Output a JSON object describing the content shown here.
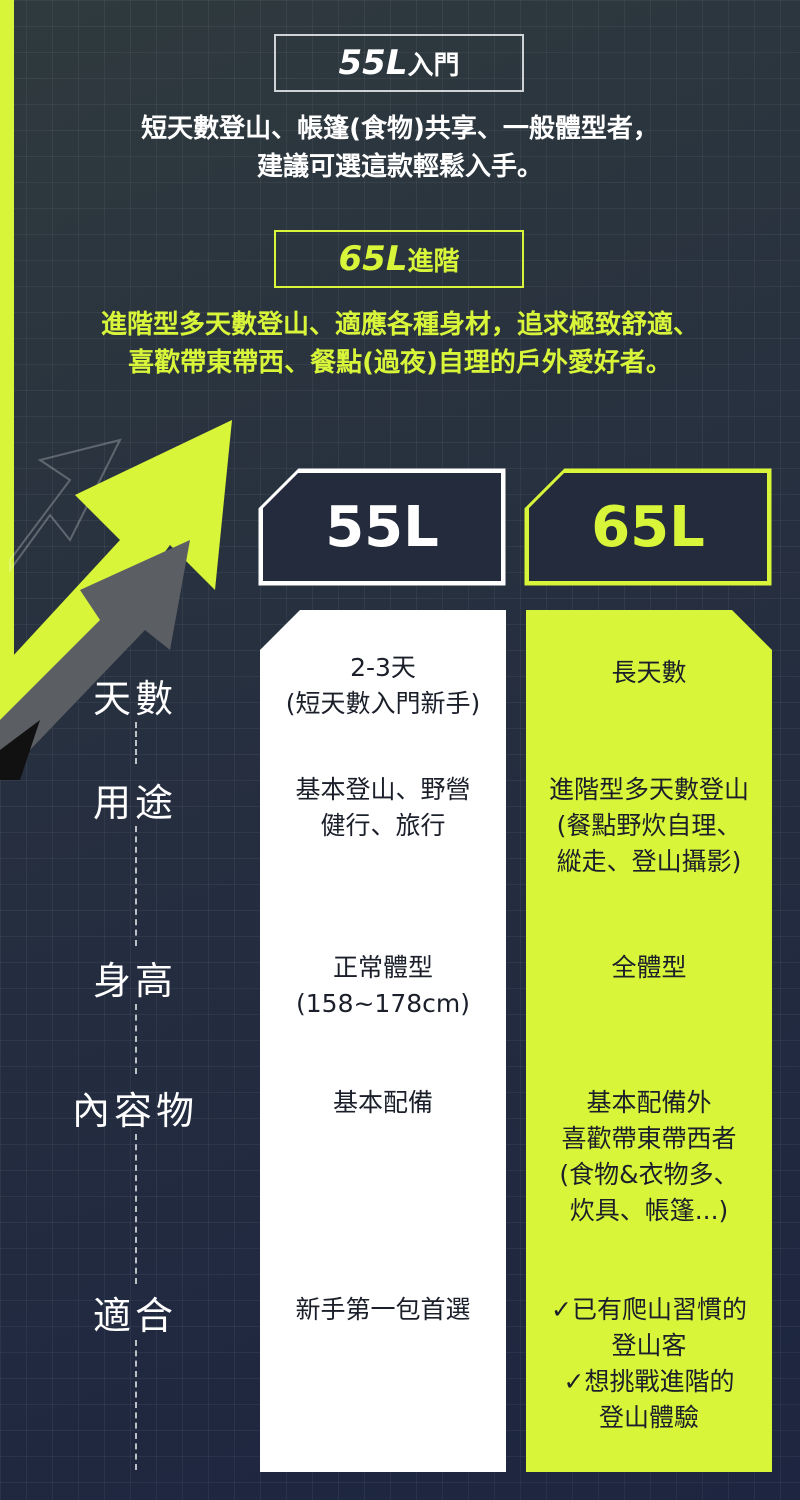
{
  "tiers": [
    {
      "tag_size": "55L",
      "tag_suffix": "入門",
      "desc_line1": "短天數登山、帳篷(食物)共享、一般體型者，",
      "desc_line2": "建議可選這款輕鬆入手。"
    },
    {
      "tag_size": "65L",
      "tag_suffix": "進階",
      "desc_line1": "進階型多天數登山、適應各種身材，追求極致舒適、",
      "desc_line2": "喜歡帶東帶西、餐點(過夜)自理的戶外愛好者。"
    }
  ],
  "columns": {
    "left_header": "55L",
    "right_header": "65L"
  },
  "rows": [
    {
      "label": "天數",
      "left": "2-3天\n(短天數入門新手)",
      "right": "長天數"
    },
    {
      "label": "用途",
      "left": "基本登山、野營\n健行、旅行",
      "right": "進階型多天數登山\n(餐點野炊自理、\n縱走、登山攝影)"
    },
    {
      "label": "身高",
      "left": "正常體型\n(158~178cm)",
      "right": "全體型"
    },
    {
      "label": "內容物",
      "left": "基本配備",
      "right": "基本配備外\n喜歡帶東帶西者\n(食物&衣物多、\n炊具、帳篷...)"
    },
    {
      "label": "適合",
      "left": "新手第一包首選",
      "right": "✓已有爬山習慣的\n登山客\n✓想挑戰進階的\n登山體驗"
    }
  ],
  "colors": {
    "accent": "#d8f53a",
    "background": "#262f3f",
    "text_dark": "#1b1f2a"
  }
}
